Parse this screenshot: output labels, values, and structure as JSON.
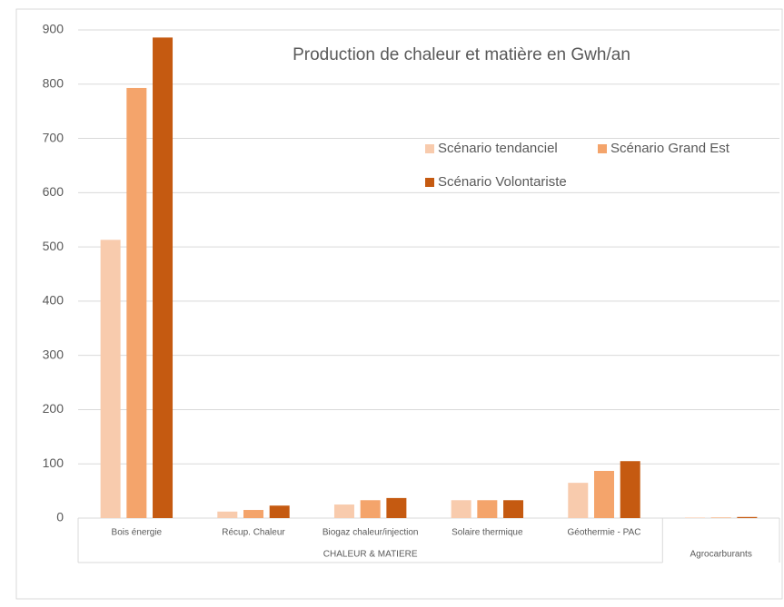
{
  "chart_data": {
    "type": "bar",
    "title": "Production de chaleur et matière en Gwh/an",
    "categories": [
      "Bois énergie",
      "Récup. Chaleur",
      "Biogaz chaleur/injection",
      "Solaire thermique",
      "Géothermie - PAC",
      null
    ],
    "groups": [
      {
        "label": "CHALEUR & MATIERE",
        "span": 5
      },
      {
        "label": "Agrocarburants",
        "span": 1
      }
    ],
    "series": [
      {
        "name": "Scénario tendanciel",
        "color": "#f8cbad",
        "values": [
          513,
          12,
          25,
          33,
          65,
          1
        ]
      },
      {
        "name": "Scénario Grand Est",
        "color": "#f4a46b",
        "values": [
          793,
          15,
          33,
          33,
          87,
          1
        ]
      },
      {
        "name": "Scénario Volontariste",
        "color": "#c55a11",
        "values": [
          886,
          23,
          37,
          33,
          105,
          2
        ]
      }
    ],
    "ylim": [
      0,
      900
    ],
    "yticks": [
      0,
      100,
      200,
      300,
      400,
      500,
      600,
      700,
      800,
      900
    ],
    "grid": true,
    "legend": "top-right"
  }
}
